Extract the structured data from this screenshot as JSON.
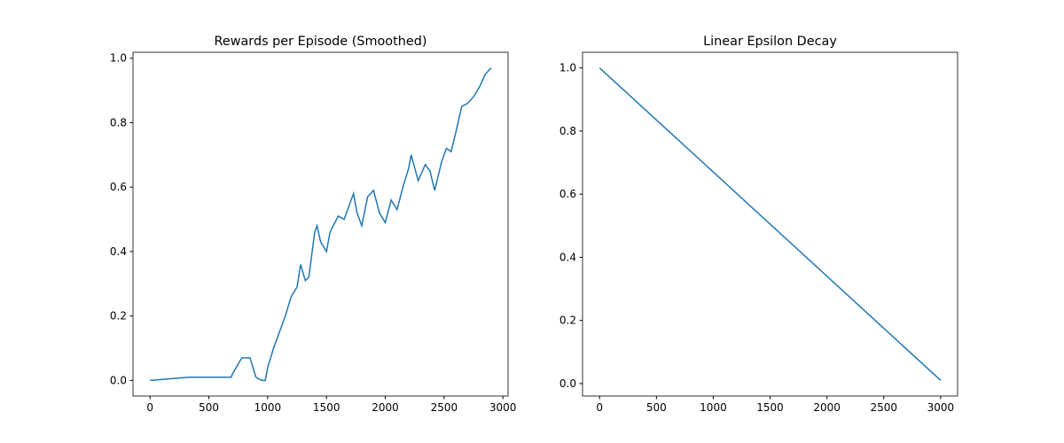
{
  "chart_data": [
    {
      "type": "line",
      "title": "Rewards per Episode (Smoothed)",
      "x": [
        0,
        330,
        430,
        580,
        690,
        700,
        780,
        850,
        900,
        950,
        980,
        1000,
        1050,
        1100,
        1150,
        1200,
        1250,
        1280,
        1320,
        1350,
        1400,
        1420,
        1450,
        1500,
        1530,
        1600,
        1650,
        1700,
        1730,
        1760,
        1800,
        1850,
        1900,
        1950,
        2000,
        2050,
        2100,
        2150,
        2200,
        2220,
        2280,
        2340,
        2380,
        2420,
        2480,
        2520,
        2560,
        2600,
        2650,
        2700,
        2750,
        2800,
        2850,
        2900
      ],
      "series": [
        {
          "color": "#1f77b4",
          "values": [
            0,
            0.01,
            0.01,
            0.01,
            0.01,
            0.02,
            0.07,
            0.07,
            0.01,
            0,
            0,
            0.04,
            0.1,
            0.15,
            0.2,
            0.26,
            0.29,
            0.36,
            0.31,
            0.32,
            0.46,
            0.48,
            0.43,
            0.4,
            0.46,
            0.51,
            0.5,
            0.55,
            0.58,
            0.52,
            0.48,
            0.57,
            0.59,
            0.52,
            0.49,
            0.56,
            0.53,
            0.6,
            0.66,
            0.7,
            0.62,
            0.67,
            0.65,
            0.59,
            0.68,
            0.72,
            0.71,
            0.77,
            0.85,
            0.86,
            0.88,
            0.91,
            0.95,
            0.97
          ]
        }
      ],
      "xlim": [
        -145,
        3044
      ],
      "ylim": [
        -0.0485,
        1.0185
      ],
      "xticks": [
        0,
        500,
        1000,
        1500,
        2000,
        2500,
        3000
      ],
      "yticks": [
        {
          "value": 0,
          "label": "0.0"
        },
        {
          "value": 0.2,
          "label": "0.2"
        },
        {
          "value": 0.4,
          "label": "0.4"
        },
        {
          "value": 0.6,
          "label": "0.6"
        },
        {
          "value": 0.8,
          "label": "0.8"
        },
        {
          "value": 1,
          "label": "1.0"
        }
      ]
    },
    {
      "type": "line",
      "title": "Linear Epsilon Decay",
      "x": [
        0,
        3000
      ],
      "series": [
        {
          "color": "#1f77b4",
          "values": [
            1,
            0.01
          ]
        }
      ],
      "xlim": [
        -150,
        3149
      ],
      "ylim": [
        -0.0395,
        1.0495
      ],
      "xticks": [
        0,
        500,
        1000,
        1500,
        2000,
        2500,
        3000
      ],
      "yticks": [
        {
          "value": 0,
          "label": "0.0"
        },
        {
          "value": 0.2,
          "label": "0.2"
        },
        {
          "value": 0.4,
          "label": "0.4"
        },
        {
          "value": 0.6,
          "label": "0.6"
        },
        {
          "value": 0.8,
          "label": "0.8"
        },
        {
          "value": 1,
          "label": "1.0"
        }
      ]
    }
  ]
}
